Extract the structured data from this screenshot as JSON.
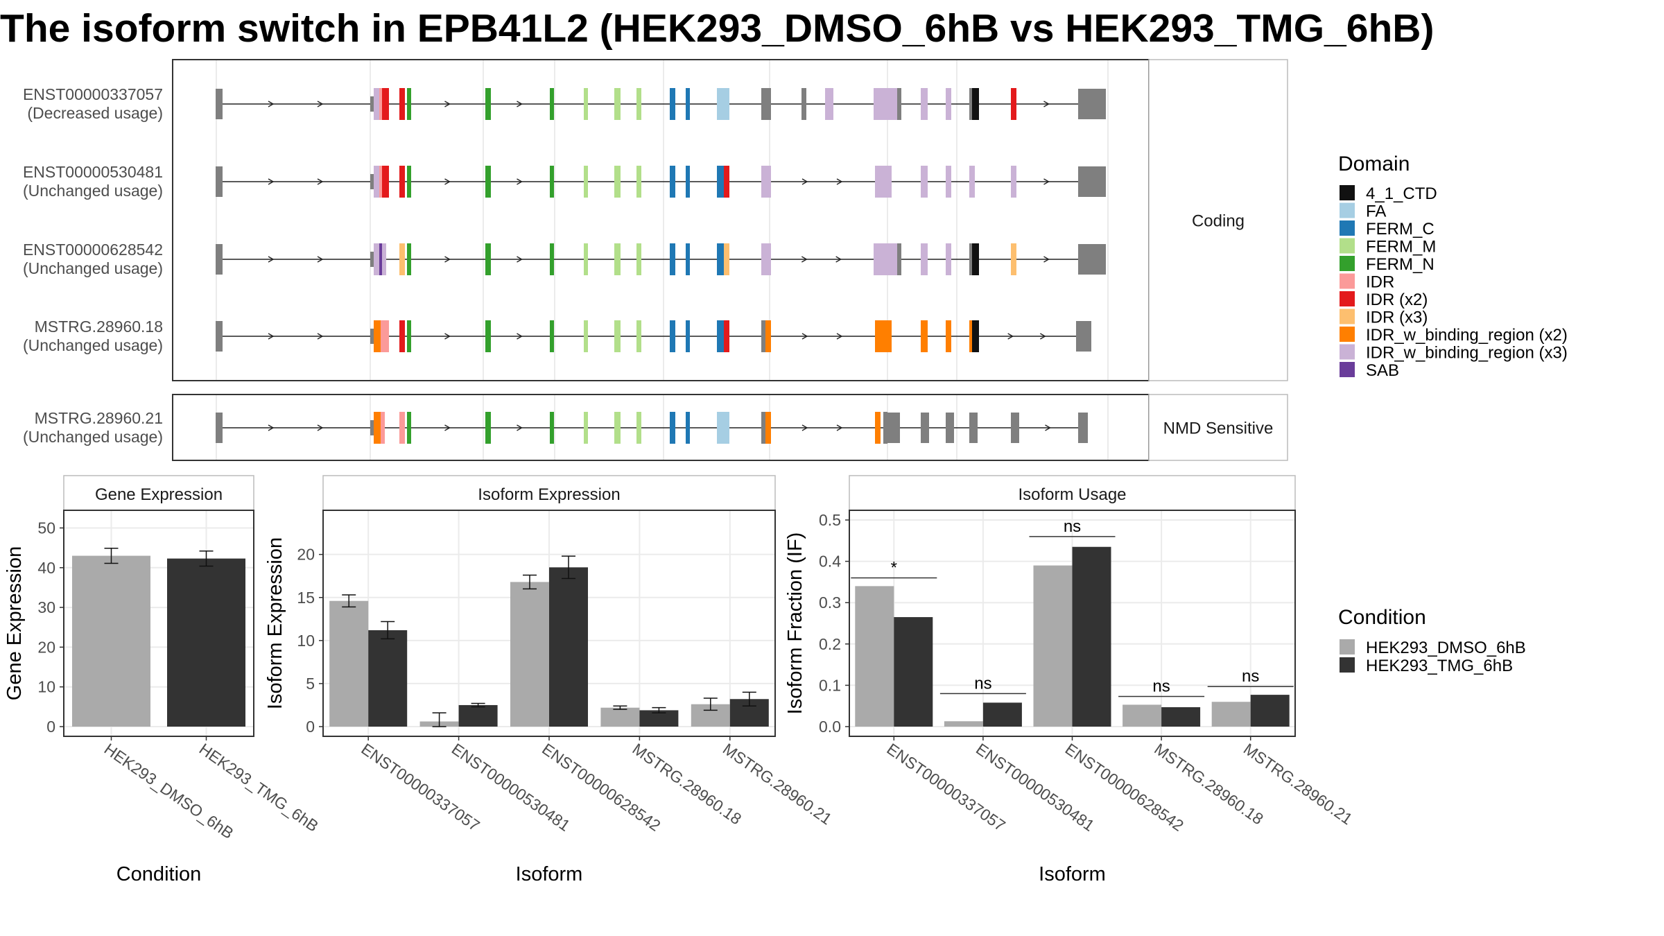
{
  "title": "The isoform switch in EPB41L2 (HEK293_DMSO_6hB vs HEK293_TMG_6hB)",
  "structure": {
    "facets": [
      {
        "label": "Coding",
        "isoforms": [
          "ENST00000337057",
          "ENST00000530481",
          "ENST00000628542",
          "MSTRG.28960.18"
        ]
      },
      {
        "label": "NMD Sensitive",
        "isoforms": [
          "MSTRG.28960.21"
        ]
      }
    ],
    "isoforms": [
      {
        "id": "ENST00000337057",
        "usage": "(Decreased usage)"
      },
      {
        "id": "ENST00000530481",
        "usage": "(Unchanged usage)"
      },
      {
        "id": "ENST00000628542",
        "usage": "(Unchanged usage)"
      },
      {
        "id": "MSTRG.28960.18",
        "usage": "(Unchanged usage)"
      },
      {
        "id": "MSTRG.28960.21",
        "usage": "(Unchanged usage)"
      }
    ],
    "domain_legend": {
      "title": "Domain",
      "entries": [
        {
          "label": "4_1_CTD",
          "color": "#111111"
        },
        {
          "label": "FA",
          "color": "#a6cee3"
        },
        {
          "label": "FERM_C",
          "color": "#1f78b4"
        },
        {
          "label": "FERM_M",
          "color": "#b2df8a"
        },
        {
          "label": "FERM_N",
          "color": "#33a02c"
        },
        {
          "label": "IDR",
          "color": "#fb9a99"
        },
        {
          "label": "IDR (x2)",
          "color": "#e31a1c"
        },
        {
          "label": "IDR (x3)",
          "color": "#fdbf6f"
        },
        {
          "label": "IDR_w_binding_region (x2)",
          "color": "#ff7f00"
        },
        {
          "label": "IDR_w_binding_region (x3)",
          "color": "#cab2d6"
        },
        {
          "label": "SAB",
          "color": "#6a3d9a"
        }
      ]
    }
  },
  "condition_legend": {
    "title": "Condition",
    "entries": [
      {
        "label": "HEK293_DMSO_6hB",
        "color": "#aaaaaa"
      },
      {
        "label": "HEK293_TMG_6hB",
        "color": "#333333"
      }
    ]
  },
  "chart_data": [
    {
      "type": "bar",
      "title": "Gene Expression",
      "xlabel": "Condition",
      "ylabel": "Gene Expression",
      "ylim": [
        0,
        52
      ],
      "yticks": [
        0,
        10,
        20,
        30,
        40,
        50
      ],
      "categories": [
        "HEK293_DMSO_6hB",
        "HEK293_TMG_6hB"
      ],
      "values": [
        43.0,
        42.3
      ],
      "errors": [
        1.9,
        1.9
      ]
    },
    {
      "type": "bar",
      "title": "Isoform Expression",
      "xlabel": "Isoform",
      "ylabel": "Isoform Expression",
      "ylim": [
        0,
        24
      ],
      "yticks": [
        0,
        5,
        10,
        15,
        20
      ],
      "categories": [
        "ENST00000337057",
        "ENST00000530481",
        "ENST00000628542",
        "MSTRG.28960.18",
        "MSTRG.28960.21"
      ],
      "series": [
        {
          "name": "HEK293_DMSO_6hB",
          "values": [
            14.6,
            0.6,
            16.8,
            2.2,
            2.6
          ],
          "errors": [
            0.7,
            1.0,
            0.8,
            0.2,
            0.7
          ]
        },
        {
          "name": "HEK293_TMG_6hB",
          "values": [
            11.2,
            2.5,
            18.5,
            1.9,
            3.2
          ],
          "errors": [
            1.0,
            0.2,
            1.3,
            0.3,
            0.8
          ]
        }
      ]
    },
    {
      "type": "bar",
      "title": "Isoform Usage",
      "xlabel": "Isoform",
      "ylabel": "Isoform Fraction (IF)",
      "ylim": [
        0,
        0.5
      ],
      "yticks": [
        0.0,
        0.1,
        0.2,
        0.3,
        0.4,
        0.5
      ],
      "categories": [
        "ENST00000337057",
        "ENST00000530481",
        "ENST00000628542",
        "MSTRG.28960.18",
        "MSTRG.28960.21"
      ],
      "series": [
        {
          "name": "HEK293_DMSO_6hB",
          "values": [
            0.34,
            0.013,
            0.39,
            0.053,
            0.06
          ]
        },
        {
          "name": "HEK293_TMG_6hB",
          "values": [
            0.265,
            0.058,
            0.435,
            0.047,
            0.077
          ]
        }
      ],
      "significance": [
        "*",
        "ns",
        "ns",
        "ns",
        "ns"
      ],
      "significance_y": [
        0.36,
        0.08,
        0.46,
        0.073,
        0.097
      ]
    }
  ]
}
